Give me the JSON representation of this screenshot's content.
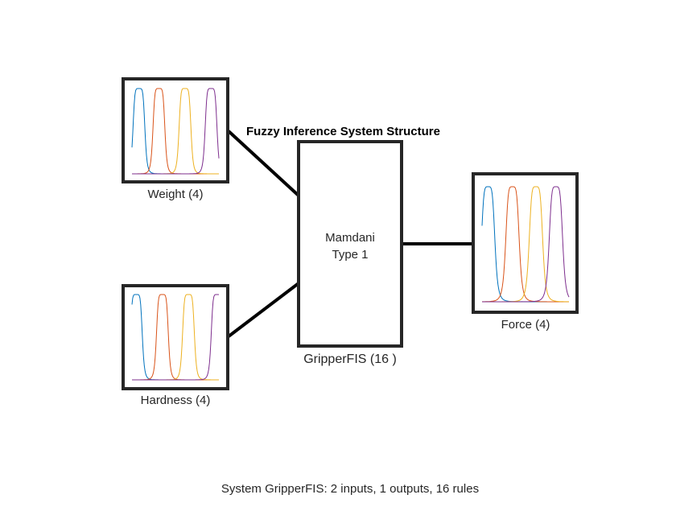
{
  "title": "Fuzzy Inference System Structure",
  "system": {
    "name_label": "GripperFIS (16 )",
    "type_label": "Mamdani\nType 1"
  },
  "inputs": [
    {
      "label": "Weight (4)",
      "mf_count": 4
    },
    {
      "label": "Hardness (4)",
      "mf_count": 4
    }
  ],
  "outputs": [
    {
      "label": "Force (4)",
      "mf_count": 4
    }
  ],
  "summary": "System GripperFIS: 2 inputs, 1 outputs, 16 rules",
  "mf_colors": [
    "#0072BD",
    "#D95319",
    "#EDB120",
    "#7E2F8E"
  ]
}
